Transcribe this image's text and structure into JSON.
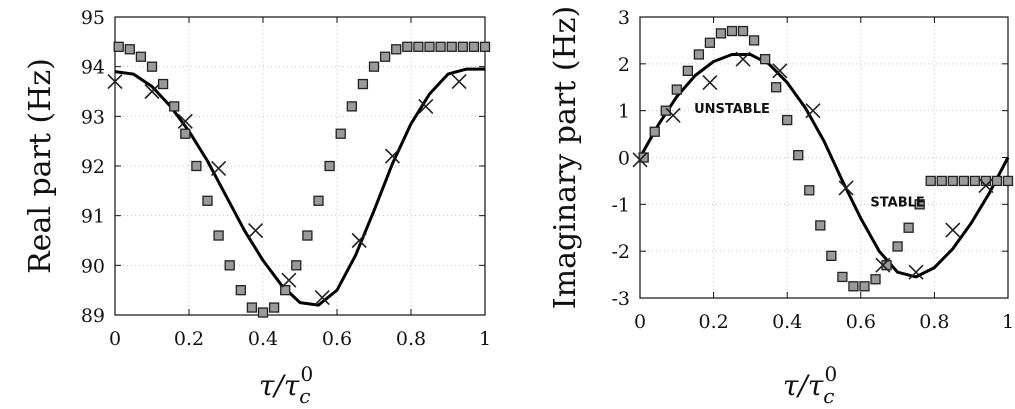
{
  "chart_data": [
    {
      "type": "line",
      "xlabel": "τ/τ_c^0",
      "xlabel_main": "τ/τ",
      "xlabel_sub": "c",
      "xlabel_sup": "0",
      "ylabel": "Real part (Hz)",
      "xlim": [
        0,
        1
      ],
      "ylim": [
        89,
        95
      ],
      "xticks": [
        0,
        0.2,
        0.4,
        0.6,
        0.8,
        1
      ],
      "xtick_labels": [
        "0",
        "0.2",
        "0.4",
        "0.6",
        "0.8",
        "1"
      ],
      "yticks": [
        89,
        90,
        91,
        92,
        93,
        94,
        95
      ],
      "ytick_labels": [
        "89",
        "90",
        "91",
        "92",
        "93",
        "94",
        "95"
      ],
      "grid": true,
      "annotations": [],
      "series": [
        {
          "style": "solid-line",
          "x": [
            0,
            0.05,
            0.1,
            0.15,
            0.2,
            0.25,
            0.3,
            0.35,
            0.4,
            0.45,
            0.5,
            0.55,
            0.6,
            0.65,
            0.7,
            0.75,
            0.8,
            0.85,
            0.9,
            0.95,
            1
          ],
          "y": [
            93.9,
            93.85,
            93.6,
            93.2,
            92.7,
            92.1,
            91.4,
            90.7,
            90.1,
            89.6,
            89.25,
            89.2,
            89.5,
            90.2,
            91.1,
            92.05,
            92.85,
            93.45,
            93.85,
            93.95,
            93.95
          ]
        },
        {
          "style": "square-markers",
          "x": [
            0.01,
            0.04,
            0.07,
            0.1,
            0.13,
            0.16,
            0.19,
            0.22,
            0.25,
            0.28,
            0.31,
            0.34,
            0.37,
            0.4,
            0.43,
            0.46,
            0.49,
            0.52,
            0.55,
            0.58,
            0.61,
            0.64,
            0.67,
            0.7,
            0.73,
            0.76,
            0.79,
            0.82,
            0.85,
            0.88,
            0.91,
            0.94,
            0.97,
            1.0
          ],
          "y": [
            94.4,
            94.35,
            94.2,
            94.0,
            93.65,
            93.2,
            92.65,
            92.0,
            91.3,
            90.6,
            90.0,
            89.5,
            89.15,
            89.05,
            89.15,
            89.5,
            90.0,
            90.6,
            91.3,
            92.0,
            92.65,
            93.2,
            93.65,
            94.0,
            94.2,
            94.35,
            94.4,
            94.4,
            94.4,
            94.4,
            94.4,
            94.4,
            94.4,
            94.4
          ]
        },
        {
          "style": "x-markers",
          "x": [
            0,
            0.1,
            0.19,
            0.28,
            0.38,
            0.47,
            0.56,
            0.66,
            0.75,
            0.84,
            0.93
          ],
          "y": [
            93.7,
            93.5,
            92.9,
            91.95,
            90.7,
            89.7,
            89.35,
            90.5,
            92.2,
            93.2,
            93.7
          ]
        }
      ]
    },
    {
      "type": "line",
      "xlabel": "τ/τ_c^0",
      "xlabel_main": "τ/τ",
      "xlabel_sub": "c",
      "xlabel_sup": "0",
      "ylabel": "Imaginary part (Hz)",
      "xlim": [
        0,
        1
      ],
      "ylim": [
        -3,
        3
      ],
      "xticks": [
        0,
        0.2,
        0.4,
        0.6,
        0.8,
        1
      ],
      "xtick_labels": [
        "0",
        "0.2",
        "0.4",
        "0.6",
        "0.8",
        "1"
      ],
      "yticks": [
        -3,
        -2,
        -1,
        0,
        1,
        2,
        3
      ],
      "ytick_labels": [
        "-3",
        "-2",
        "-1",
        "0",
        "1",
        "2",
        "3"
      ],
      "grid": true,
      "annotations": [
        {
          "text": "UNSTABLE",
          "x": 0.25,
          "y": 0.95
        },
        {
          "text": "STABLE",
          "x": 0.7,
          "y": -1.05
        }
      ],
      "series": [
        {
          "style": "solid-line",
          "x": [
            0,
            0.05,
            0.1,
            0.15,
            0.2,
            0.25,
            0.3,
            0.35,
            0.4,
            0.45,
            0.5,
            0.55,
            0.6,
            0.65,
            0.7,
            0.75,
            0.8,
            0.85,
            0.9,
            0.95,
            1
          ],
          "y": [
            0,
            0.7,
            1.3,
            1.75,
            2.05,
            2.2,
            2.2,
            2.0,
            1.6,
            1.05,
            0.35,
            -0.5,
            -1.3,
            -2.0,
            -2.45,
            -2.55,
            -2.35,
            -1.95,
            -1.4,
            -0.75,
            0
          ]
        },
        {
          "style": "square-markers",
          "x": [
            0.01,
            0.04,
            0.07,
            0.1,
            0.13,
            0.16,
            0.19,
            0.22,
            0.25,
            0.28,
            0.31,
            0.34,
            0.37,
            0.4,
            0.43,
            0.46,
            0.49,
            0.52,
            0.55,
            0.58,
            0.61,
            0.64,
            0.67,
            0.7,
            0.73,
            0.76,
            0.79,
            0.82,
            0.85,
            0.88,
            0.91,
            0.94,
            0.97,
            1.0
          ],
          "y": [
            0.0,
            0.55,
            1.0,
            1.45,
            1.85,
            2.2,
            2.45,
            2.65,
            2.7,
            2.7,
            2.5,
            2.1,
            1.5,
            0.8,
            0.05,
            -0.7,
            -1.45,
            -2.1,
            -2.55,
            -2.75,
            -2.75,
            -2.6,
            -2.3,
            -1.9,
            -1.5,
            -1.0,
            -0.5,
            -0.5,
            -0.5,
            -0.5,
            -0.5,
            -0.5,
            -0.5,
            -0.5
          ]
        },
        {
          "style": "x-markers",
          "x": [
            0,
            0.09,
            0.19,
            0.28,
            0.38,
            0.47,
            0.56,
            0.66,
            0.75,
            0.85,
            0.94
          ],
          "y": [
            -0.05,
            0.9,
            1.6,
            2.1,
            1.85,
            1.0,
            -0.65,
            -2.3,
            -2.45,
            -1.55,
            -0.6
          ]
        }
      ]
    }
  ]
}
